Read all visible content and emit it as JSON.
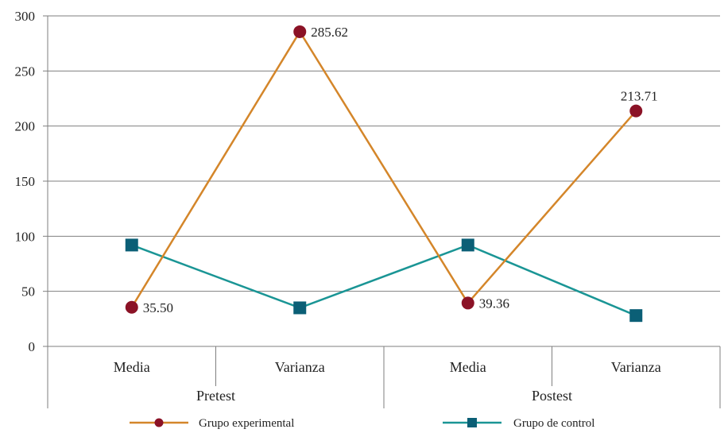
{
  "chart_data": {
    "type": "line",
    "categories": [
      "Media",
      "Varianza",
      "Media",
      "Varianza"
    ],
    "groups": [
      "Pretest",
      "Postest"
    ],
    "ylim": [
      0,
      300
    ],
    "yticks": [
      "0",
      "50",
      "100",
      "150",
      "200",
      "250",
      "300"
    ],
    "grid": true,
    "legend_position": "bottom",
    "series": [
      {
        "name": "Grupo experimental",
        "color": "#d4862a",
        "marker_color": "#8b1226",
        "marker": "circle",
        "values": [
          35.5,
          285.62,
          39.36,
          213.71
        ],
        "labels": [
          "35.50",
          "285.62",
          "39.36",
          "213.71"
        ]
      },
      {
        "name": "Grupo de control",
        "color": "#1a9595",
        "marker_color": "#0b5f76",
        "marker": "square",
        "values": [
          92,
          35,
          92,
          28
        ]
      }
    ]
  }
}
